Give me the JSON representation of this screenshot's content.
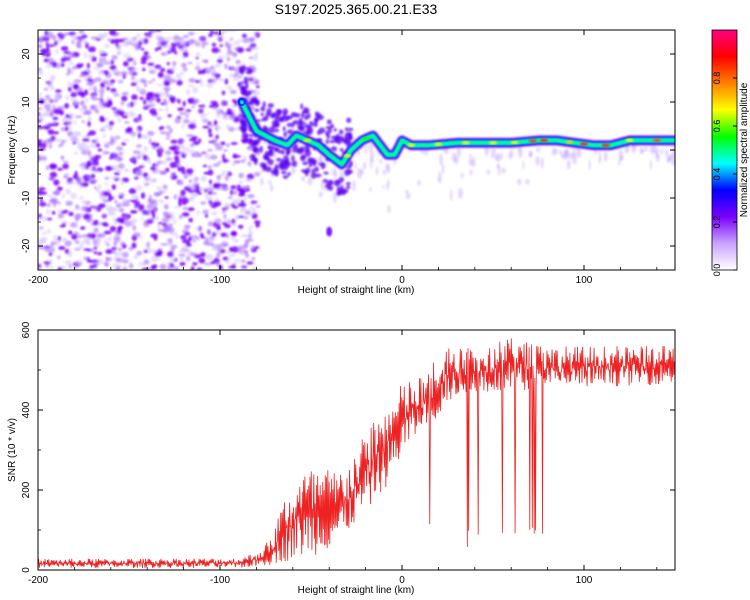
{
  "title": "S197.2025.365.00.21.E33",
  "chart_data": [
    {
      "type": "heatmap",
      "xlabel": "Height of straight line (km)",
      "ylabel": "Frequency (Hz)",
      "xlim": [
        -200,
        150
      ],
      "ylim": [
        -25,
        25
      ],
      "xticks": [
        -200,
        -100,
        0,
        100
      ],
      "xtick_labels": [
        "-200",
        "-100",
        "0",
        "100"
      ],
      "yticks": [
        -20,
        -10,
        0,
        10,
        20
      ],
      "ytick_labels": [
        "-20",
        "-10",
        "0",
        "10",
        "20"
      ],
      "colorbar": {
        "label": "Normalized spectral amplitude",
        "range": [
          0,
          1
        ],
        "ticks": [
          0,
          0.2,
          0.4,
          0.6,
          0.8
        ],
        "tick_labels": [
          "0.0",
          "0.2",
          "0.4",
          "0.6",
          "0.8"
        ],
        "colors": [
          "#ffffff",
          "#c9a3ff",
          "#7a00ff",
          "#0000ff",
          "#00ffff",
          "#00ff00",
          "#ffff00",
          "#ff8000",
          "#ff0000",
          "#ff0080"
        ]
      },
      "ridge": {
        "x": [
          -88,
          -80,
          -70,
          -63,
          -58,
          -52,
          -46,
          -40,
          -33,
          -28,
          -22,
          -16,
          -12,
          -8,
          -4,
          0,
          5,
          15,
          30,
          45,
          60,
          75,
          85,
          95,
          105,
          115,
          125,
          150
        ],
        "y": [
          10,
          4,
          2,
          1,
          3,
          2,
          1,
          -1,
          -3,
          0,
          2,
          3,
          1,
          -1,
          -1,
          2,
          1,
          1,
          1.5,
          1.5,
          1.5,
          2,
          2,
          1.5,
          1,
          1,
          2,
          2
        ]
      },
      "noise_region_x": [
        -200,
        -85
      ],
      "isolated_blob": {
        "x": -40,
        "y": -17
      }
    },
    {
      "type": "line",
      "xlabel": "Height of straight line (km)",
      "ylabel": "SNR (10 * v/v)",
      "xlim": [
        -200,
        150
      ],
      "ylim": [
        0,
        600
      ],
      "xticks": [
        -200,
        -100,
        0,
        100
      ],
      "xtick_labels": [
        "-200",
        "-100",
        "0",
        "100"
      ],
      "yticks": [
        0,
        200,
        400,
        600
      ],
      "ytick_labels": [
        "0",
        "200",
        "400",
        "600"
      ],
      "color": "#ee2222",
      "envelope": {
        "x": [
          -200,
          -90,
          -80,
          -72,
          -65,
          -55,
          -45,
          -35,
          -25,
          -15,
          -5,
          0,
          10,
          20,
          25,
          30,
          40,
          50,
          60,
          80,
          100,
          120,
          150
        ],
        "low": [
          5,
          5,
          8,
          12,
          20,
          30,
          40,
          60,
          120,
          170,
          230,
          280,
          340,
          380,
          420,
          430,
          440,
          445,
          450,
          450,
          455,
          460,
          465
        ],
        "high": [
          28,
          30,
          45,
          80,
          180,
          250,
          260,
          250,
          300,
          390,
          430,
          470,
          490,
          540,
          560,
          560,
          565,
          570,
          580,
          560,
          560,
          560,
          560
        ]
      },
      "dropout_range_x": [
        43,
        80
      ],
      "dropout_min": 90
    }
  ]
}
